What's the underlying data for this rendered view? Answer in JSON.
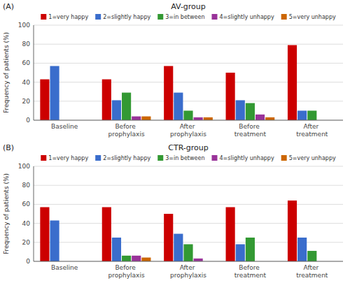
{
  "chart_data": [
    {
      "type": "bar",
      "title": "AV-group",
      "annotations": [
        "(A)"
      ],
      "categories": [
        "Baseline",
        "Before prophylaxis",
        "After prophylaxis",
        "Before treatment",
        "After treatment"
      ],
      "series": [
        {
          "name": "1=very happy",
          "color": "#cc0000",
          "values": [
            43,
            43,
            57,
            50,
            79
          ]
        },
        {
          "name": "2=slightly happy",
          "color": "#3a6dcc",
          "values": [
            57,
            21,
            29,
            21,
            10
          ]
        },
        {
          "name": "3=in between",
          "color": "#339933",
          "values": [
            0,
            29,
            10,
            18,
            10
          ]
        },
        {
          "name": "4=slightly unhappy",
          "color": "#993399",
          "values": [
            0,
            4,
            3,
            6,
            0
          ]
        },
        {
          "name": "5=very unhappy",
          "color": "#cc6600",
          "values": [
            0,
            4,
            3,
            3,
            0
          ]
        }
      ],
      "y_label": "Frequency of patients (%)",
      "ylim": [
        0,
        100
      ],
      "yticks": [
        0,
        20,
        40,
        60,
        80,
        100
      ],
      "grid": true,
      "legend": "top"
    },
    {
      "type": "bar",
      "title": "CTR-group",
      "annotations": [
        "(B)"
      ],
      "categories": [
        "Baseline",
        "Before prophylaxis",
        "After prophylaxis",
        "Before treatment",
        "After treatment"
      ],
      "series": [
        {
          "name": "1=very happy",
          "color": "#cc0000",
          "values": [
            57,
            57,
            50,
            57,
            64
          ]
        },
        {
          "name": "2=slightly happy",
          "color": "#3a6dcc",
          "values": [
            43,
            25,
            29,
            18,
            25
          ]
        },
        {
          "name": "3=in between",
          "color": "#339933",
          "values": [
            0,
            6,
            18,
            25,
            11
          ]
        },
        {
          "name": "4=slightly unhappy",
          "color": "#993399",
          "values": [
            0,
            6,
            3,
            0,
            0
          ]
        },
        {
          "name": "5=very unhappy",
          "color": "#cc6600",
          "values": [
            0,
            4,
            0,
            0,
            0
          ]
        }
      ],
      "y_label": "Frequency of patients (%)",
      "ylim": [
        0,
        100
      ],
      "yticks": [
        0,
        20,
        40,
        60,
        80,
        100
      ],
      "grid": true,
      "legend": "top"
    }
  ]
}
